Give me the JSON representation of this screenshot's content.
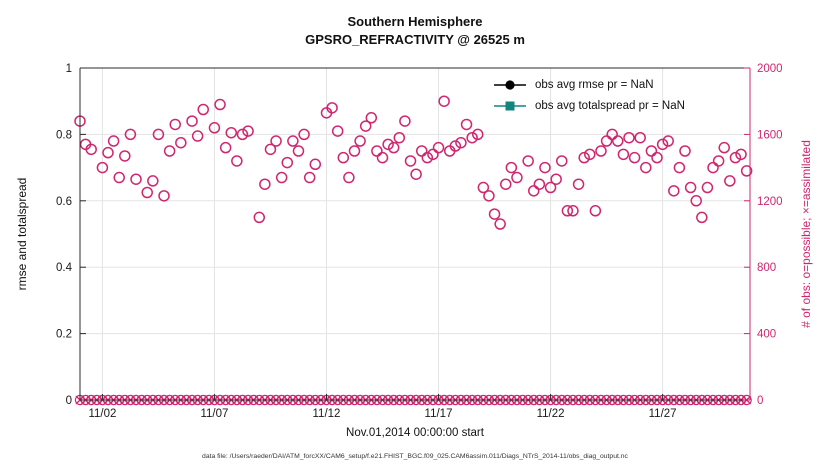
{
  "caption": "data file: /Users/raeder/DAI/ATM_forcXX/CAM6_setup/f.e21.FHIST_BGC.f09_025.CAM6assim.011/Diags_NTrS_2014-11/obs_diag_output.nc",
  "colors": {
    "accent": "#d02670",
    "teal": "#12857e",
    "rmse_black": "#000000",
    "axis": "#2b2b2b",
    "grid": "#e3e3e3"
  },
  "chart_data": {
    "type": "scatter",
    "title": "Southern Hemisphere",
    "subtitle": "GPSRO_REFRACTIVITY @ 26525 m",
    "ylabel_left": "rmse and totalspread",
    "ylabel_right": "# of obs: o=possible; ×=assimilated",
    "xlabel": "Nov.01,2014 00:00:00 start",
    "grid": true,
    "legend_position": "top-right-inside",
    "left_axis": {
      "min": 0,
      "max": 1,
      "ticks": [
        0,
        0.2,
        0.4,
        0.6,
        0.8,
        1
      ]
    },
    "right_axis": {
      "min": 0,
      "max": 2000,
      "ticks": [
        0,
        400,
        800,
        1200,
        1600,
        2000
      ]
    },
    "x_axis": {
      "min_day": 1,
      "max_day": 30.9,
      "tick_days": [
        2,
        7,
        12,
        17,
        22,
        27
      ],
      "tick_labels": [
        "11/02",
        "11/07",
        "11/12",
        "11/17",
        "11/22",
        "11/27"
      ]
    },
    "legend": [
      "obs avg rmse pr = NaN",
      "obs avg totalspread pr = NaN"
    ],
    "series": [
      {
        "name": "possible_obs",
        "marker": "o",
        "axis": "right",
        "points": [
          [
            1,
            1680
          ],
          [
            1.25,
            1540
          ],
          [
            1.5,
            1510
          ],
          [
            2,
            1400
          ],
          [
            2.25,
            1490
          ],
          [
            2.5,
            1560
          ],
          [
            2.75,
            1340
          ],
          [
            3,
            1470
          ],
          [
            3.25,
            1600
          ],
          [
            3.5,
            1330
          ],
          [
            4,
            1250
          ],
          [
            4.25,
            1320
          ],
          [
            4.5,
            1600
          ],
          [
            4.75,
            1230
          ],
          [
            5,
            1500
          ],
          [
            5.25,
            1660
          ],
          [
            5.5,
            1550
          ],
          [
            6,
            1680
          ],
          [
            6.25,
            1590
          ],
          [
            6.5,
            1750
          ],
          [
            7,
            1640
          ],
          [
            7.25,
            1780
          ],
          [
            7.5,
            1520
          ],
          [
            7.75,
            1610
          ],
          [
            8,
            1440
          ],
          [
            8.25,
            1600
          ],
          [
            8.5,
            1620
          ],
          [
            9,
            1100
          ],
          [
            9.25,
            1300
          ],
          [
            9.5,
            1510
          ],
          [
            9.75,
            1560
          ],
          [
            10,
            1340
          ],
          [
            10.25,
            1430
          ],
          [
            10.5,
            1560
          ],
          [
            10.75,
            1500
          ],
          [
            11,
            1600
          ],
          [
            11.25,
            1340
          ],
          [
            11.5,
            1420
          ],
          [
            12,
            1730
          ],
          [
            12.25,
            1760
          ],
          [
            12.5,
            1620
          ],
          [
            12.75,
            1460
          ],
          [
            13,
            1340
          ],
          [
            13.25,
            1500
          ],
          [
            13.5,
            1560
          ],
          [
            13.75,
            1650
          ],
          [
            14,
            1700
          ],
          [
            14.25,
            1500
          ],
          [
            14.5,
            1460
          ],
          [
            14.75,
            1540
          ],
          [
            15,
            1520
          ],
          [
            15.25,
            1580
          ],
          [
            15.5,
            1680
          ],
          [
            15.75,
            1440
          ],
          [
            16,
            1360
          ],
          [
            16.25,
            1500
          ],
          [
            16.5,
            1460
          ],
          [
            16.75,
            1480
          ],
          [
            17,
            1520
          ],
          [
            17.25,
            1800
          ],
          [
            17.5,
            1500
          ],
          [
            17.75,
            1530
          ],
          [
            18,
            1550
          ],
          [
            18.25,
            1660
          ],
          [
            18.5,
            1580
          ],
          [
            18.75,
            1600
          ],
          [
            19,
            1280
          ],
          [
            19.25,
            1230
          ],
          [
            19.5,
            1120
          ],
          [
            19.75,
            1060
          ],
          [
            20,
            1300
          ],
          [
            20.25,
            1400
          ],
          [
            20.5,
            1340
          ],
          [
            21,
            1440
          ],
          [
            21.25,
            1260
          ],
          [
            21.5,
            1300
          ],
          [
            21.75,
            1400
          ],
          [
            22,
            1280
          ],
          [
            22.25,
            1330
          ],
          [
            22.5,
            1440
          ],
          [
            22.75,
            1140
          ],
          [
            23,
            1140
          ],
          [
            23.25,
            1300
          ],
          [
            23.5,
            1460
          ],
          [
            23.75,
            1480
          ],
          [
            24,
            1140
          ],
          [
            24.25,
            1500
          ],
          [
            24.5,
            1560
          ],
          [
            24.75,
            1600
          ],
          [
            25,
            1560
          ],
          [
            25.25,
            1480
          ],
          [
            25.5,
            1580
          ],
          [
            25.75,
            1460
          ],
          [
            26,
            1580
          ],
          [
            26.25,
            1400
          ],
          [
            26.5,
            1500
          ],
          [
            26.75,
            1460
          ],
          [
            27,
            1540
          ],
          [
            27.25,
            1560
          ],
          [
            27.5,
            1260
          ],
          [
            27.75,
            1400
          ],
          [
            28,
            1500
          ],
          [
            28.25,
            1280
          ],
          [
            28.5,
            1200
          ],
          [
            28.75,
            1100
          ],
          [
            29,
            1280
          ],
          [
            29.25,
            1400
          ],
          [
            29.5,
            1440
          ],
          [
            29.75,
            1520
          ],
          [
            30,
            1320
          ],
          [
            30.25,
            1460
          ],
          [
            30.5,
            1480
          ],
          [
            30.75,
            1380
          ]
        ]
      },
      {
        "name": "assimilated_obs",
        "marker": "x",
        "axis": "right",
        "value": 0,
        "start_day": 1,
        "end_day": 30.75,
        "step_days": 0.25
      }
    ]
  }
}
